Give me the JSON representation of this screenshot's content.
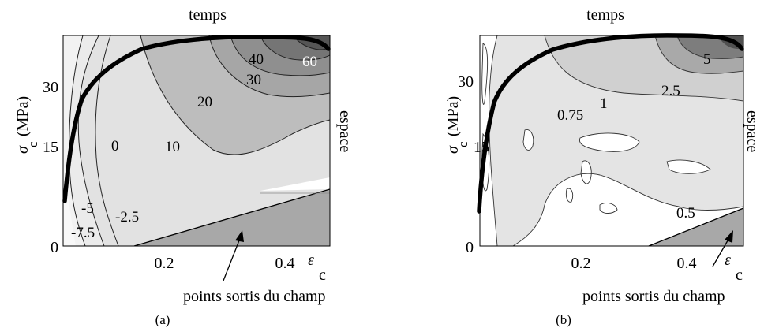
{
  "panels": [
    {
      "id": "a",
      "caption": "(a)",
      "top_label": "temps",
      "right_label": "espace",
      "ylabel_sigma": "σ",
      "ylabel_sub": "c",
      "ylabel_unit": "(MPa)",
      "xlabel_eps": "ε",
      "xlabel_sub": "c",
      "y_ticks": [
        "0",
        "15",
        "30"
      ],
      "x_ticks": [
        "0.2",
        "0.4"
      ],
      "annotation": "points sortis du champ",
      "contour_labels": [
        "60",
        "40",
        "30",
        "20",
        "10",
        "0",
        "-2.5",
        "-5",
        "-7.5"
      ]
    },
    {
      "id": "b",
      "caption": "(b)",
      "top_label": "temps",
      "right_label": "espace",
      "ylabel_sigma": "σ",
      "ylabel_sub": "c",
      "ylabel_unit": "(MPa)",
      "xlabel_eps": "ε",
      "xlabel_sub": "c",
      "y_ticks": [
        "0",
        "15",
        "30"
      ],
      "x_ticks": [
        "0.2",
        "0.4"
      ],
      "annotation": "points sortis du champ",
      "contour_labels": [
        "5",
        "2.5",
        "1",
        "0.75",
        "0.5"
      ]
    }
  ],
  "chart_data": [
    {
      "type": "heatmap",
      "panel": "a",
      "x_ticks": [
        0.2,
        0.4
      ],
      "y_ticks": [
        0,
        15,
        30
      ],
      "contour_levels": [
        -7.5,
        -5,
        -2.5,
        0,
        10,
        20,
        30,
        40,
        60
      ]
    },
    {
      "type": "heatmap",
      "panel": "b",
      "x_ticks": [
        0.2,
        0.4
      ],
      "y_ticks": [
        0,
        15,
        30
      ],
      "contour_levels": [
        0.5,
        0.75,
        1,
        2.5,
        5
      ]
    }
  ]
}
